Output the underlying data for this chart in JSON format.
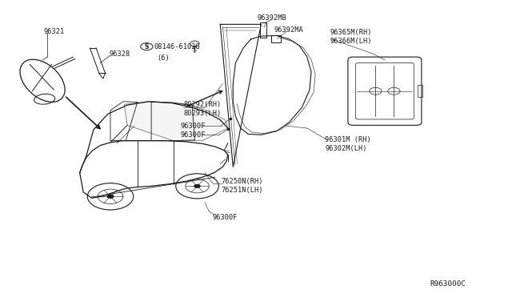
{
  "bg_color": "#ffffff",
  "line_color": "#1a1a1a",
  "fig_width": 6.4,
  "fig_height": 3.72,
  "dpi": 100,
  "labels": {
    "96321": [
      0.085,
      0.895
    ],
    "96328": [
      0.213,
      0.82
    ],
    "screw_label": [
      "S08146-6102G",
      0.29,
      0.845
    ],
    "screw_sub": [
      "(6)",
      0.316,
      0.805
    ],
    "80292rh": [
      "80292(RH)",
      0.358,
      0.645
    ],
    "80293lh": [
      "80293(LH)",
      0.358,
      0.615
    ],
    "96300F_a": [
      "96300F",
      0.352,
      0.575
    ],
    "96300F_b": [
      "96300F",
      0.352,
      0.545
    ],
    "96392MB": [
      "96392MB",
      0.502,
      0.94
    ],
    "96392MA": [
      "96392MA",
      0.535,
      0.9
    ],
    "96365rh": [
      "96365M(RH)",
      0.645,
      0.89
    ],
    "96366lh": [
      "96366M(LH)",
      0.645,
      0.86
    ],
    "96301rh": [
      "96301M (RH)",
      0.635,
      0.53
    ],
    "96302lh": [
      "96302M(LH)",
      0.635,
      0.5
    ],
    "76250rh": [
      "76250N(RH)",
      0.432,
      0.388
    ],
    "76251lh": [
      "76251N(LH)",
      0.432,
      0.358
    ],
    "96300F_c": [
      "96300F",
      0.415,
      0.265
    ],
    "ref": [
      "R963000C",
      0.84,
      0.045
    ]
  },
  "font_size": 6.2
}
